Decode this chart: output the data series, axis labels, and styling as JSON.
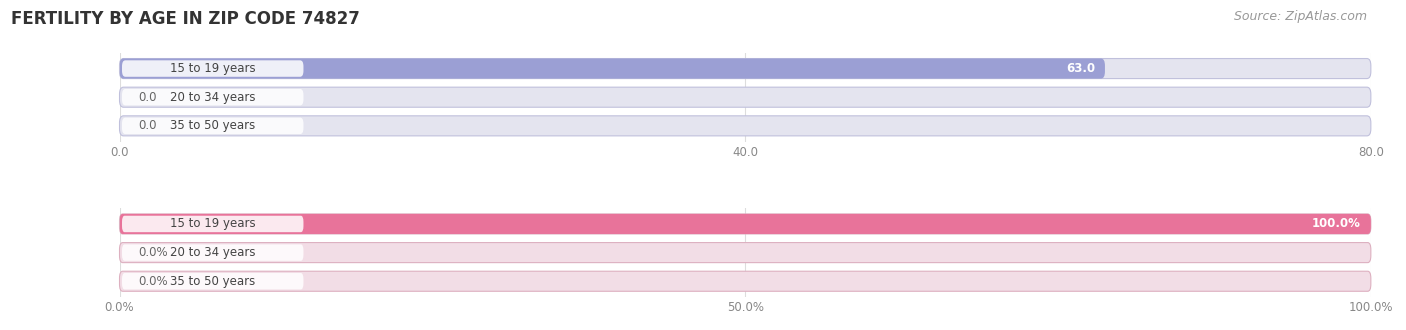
{
  "title": "FERTILITY BY AGE IN ZIP CODE 74827",
  "source": "Source: ZipAtlas.com",
  "top_chart": {
    "categories": [
      "15 to 19 years",
      "20 to 34 years",
      "35 to 50 years"
    ],
    "values": [
      63.0,
      0.0,
      0.0
    ],
    "xlim": [
      0,
      80.0
    ],
    "xticks": [
      0.0,
      40.0,
      80.0
    ],
    "xticklabels": [
      "0.0",
      "40.0",
      "80.0"
    ],
    "bar_color": "#9b9fd4",
    "bar_bg_color": "#e4e4ef",
    "bar_border_color": "#c0c0dc"
  },
  "bottom_chart": {
    "categories": [
      "15 to 19 years",
      "20 to 34 years",
      "35 to 50 years"
    ],
    "values": [
      100.0,
      0.0,
      0.0
    ],
    "xlim": [
      0,
      100.0
    ],
    "xticks": [
      0.0,
      50.0,
      100.0
    ],
    "xticklabels": [
      "0.0%",
      "50.0%",
      "100.0%"
    ],
    "bar_color": "#e8739a",
    "bar_bg_color": "#f2dde6",
    "bar_border_color": "#ddb0c0"
  },
  "title_fontsize": 12,
  "source_fontsize": 9,
  "label_fontsize": 8.5,
  "category_fontsize": 8.5,
  "tick_fontsize": 8.5,
  "background_color": "#ffffff",
  "bar_height": 0.7,
  "grid_color": "#dddddd"
}
